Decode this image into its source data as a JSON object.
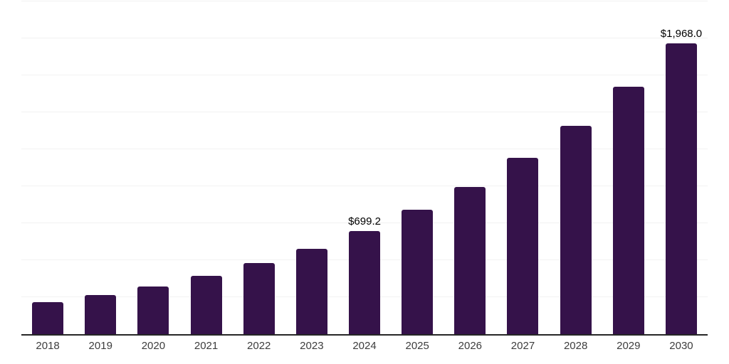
{
  "chart_data": {
    "type": "bar",
    "title": "",
    "xlabel": "",
    "ylabel": "",
    "categories": [
      "2018",
      "2019",
      "2020",
      "2021",
      "2022",
      "2023",
      "2024",
      "2025",
      "2026",
      "2027",
      "2028",
      "2029",
      "2030"
    ],
    "values": [
      217,
      265,
      322,
      393,
      479,
      579,
      699.2,
      841,
      994,
      1192,
      1409,
      1671,
      1968
    ],
    "data_labels": {
      "2024": "$699.2",
      "2030": "$1,968.0"
    },
    "ylim": [
      0,
      2250
    ],
    "gridline_step": 250,
    "grid": true,
    "legend_position": "none",
    "colors": {
      "bar": "#35124A",
      "gridline": "#F2F2F2",
      "axis": "#262626",
      "tick_label": "#3D3D3D",
      "data_label": "#000000",
      "background": "#FFFFFF"
    }
  }
}
